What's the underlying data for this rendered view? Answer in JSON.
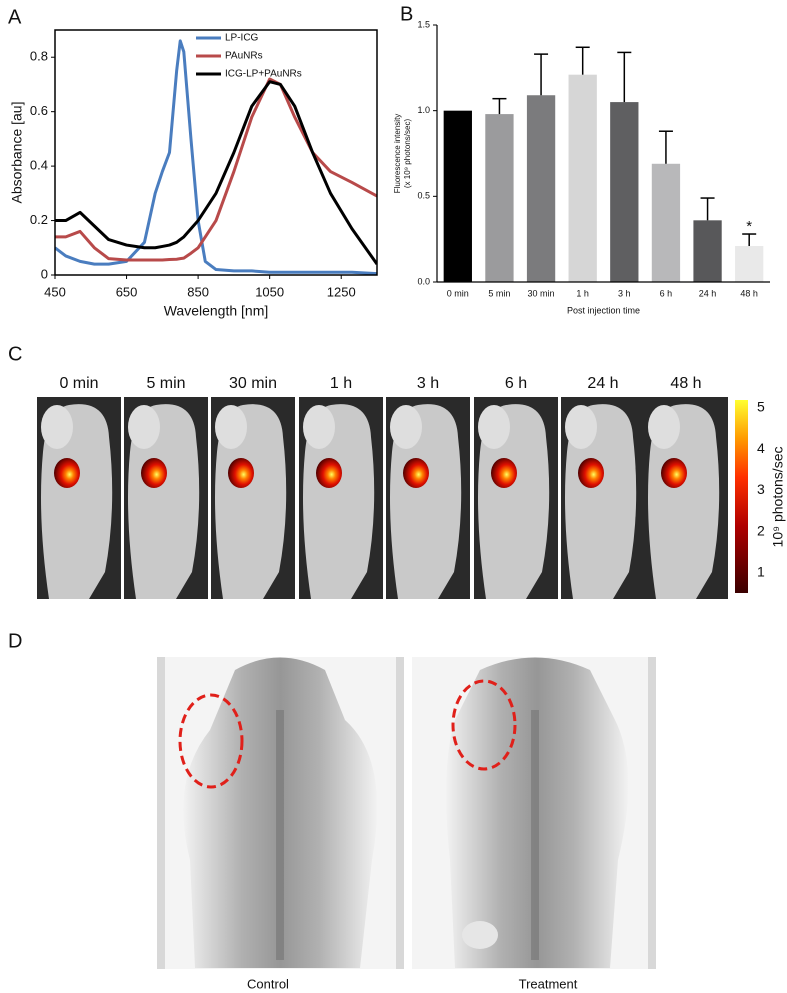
{
  "chart_data": [
    {
      "type": "line",
      "xlabel": "Wavelength [nm]",
      "ylabel": "Absorbance [au]",
      "x": [
        450,
        480,
        520,
        560,
        600,
        650,
        700,
        730,
        750,
        770,
        790,
        800,
        810,
        830,
        850,
        870,
        900,
        950,
        1000,
        1050,
        1080,
        1120,
        1170,
        1220,
        1280,
        1350
      ],
      "series": [
        {
          "name": "LP-ICG",
          "color": "#4a7dbf",
          "values": [
            0.1,
            0.07,
            0.05,
            0.04,
            0.04,
            0.05,
            0.12,
            0.3,
            0.38,
            0.45,
            0.75,
            0.86,
            0.82,
            0.5,
            0.2,
            0.05,
            0.02,
            0.015,
            0.015,
            0.01,
            0.01,
            0.01,
            0.01,
            0.01,
            0.01,
            0.005
          ]
        },
        {
          "name": "PAuNRs",
          "color": "#b84a4a",
          "values": [
            0.14,
            0.14,
            0.16,
            0.1,
            0.06,
            0.055,
            0.055,
            0.055,
            0.055,
            0.057,
            0.058,
            0.06,
            0.062,
            0.08,
            0.1,
            0.14,
            0.2,
            0.38,
            0.58,
            0.72,
            0.7,
            0.58,
            0.45,
            0.38,
            0.34,
            0.29
          ]
        },
        {
          "name": "ICG-LP+PAuNRs",
          "color": "#000000",
          "values": [
            0.2,
            0.2,
            0.23,
            0.18,
            0.13,
            0.11,
            0.1,
            0.1,
            0.105,
            0.11,
            0.12,
            0.13,
            0.14,
            0.17,
            0.2,
            0.24,
            0.3,
            0.45,
            0.62,
            0.71,
            0.7,
            0.62,
            0.45,
            0.3,
            0.17,
            0.04
          ]
        }
      ],
      "xlim": [
        450,
        1350
      ],
      "xticks": [
        450,
        650,
        850,
        1050,
        1250
      ],
      "ylim": [
        0,
        0.9
      ],
      "yticks": [
        0,
        0.2,
        0.4,
        0.6,
        0.8
      ],
      "grid": false,
      "legend": "upper center"
    },
    {
      "type": "bar",
      "xlabel": "Post injection time",
      "ylabel": [
        "Fluorescence intensity",
        "(x 10⁹ photons/sec)"
      ],
      "categories": [
        "0 min",
        "5 min",
        "30 min",
        "1 h",
        "3 h",
        "6 h",
        "24 h",
        "48 h"
      ],
      "values": [
        1.0,
        0.98,
        1.09,
        1.21,
        1.05,
        0.69,
        0.36,
        0.21
      ],
      "errors": [
        0,
        0.09,
        0.24,
        0.16,
        0.29,
        0.19,
        0.13,
        0.07
      ],
      "colors": [
        "#000000",
        "#9b9b9d",
        "#7b7b7d",
        "#d6d6d6",
        "#5f5f61",
        "#b8b8ba",
        "#58585a",
        "#e9e9e9"
      ],
      "ylim": [
        0,
        1.5
      ],
      "yticks": [
        {
          "value": 0,
          "label": "0.0"
        },
        0.5,
        {
          "value": 1,
          "label": "1.0"
        },
        1.5
      ],
      "grid": false,
      "annotations": [
        {
          "text": "*",
          "x": "48 h"
        }
      ]
    }
  ],
  "panel_labels": [
    "A",
    "B",
    "C",
    "D"
  ],
  "panel_c": {
    "time_labels": [
      "0 min",
      "5 min",
      "30 min",
      "1 h",
      "3 h",
      "6 h",
      "24 h",
      "48 h"
    ],
    "colorbar": {
      "ticks": [
        1,
        2,
        3,
        4,
        5
      ],
      "label": "10⁹ photons/sec"
    }
  },
  "panel_d": {
    "labels": [
      "Control",
      "Treatment"
    ]
  }
}
